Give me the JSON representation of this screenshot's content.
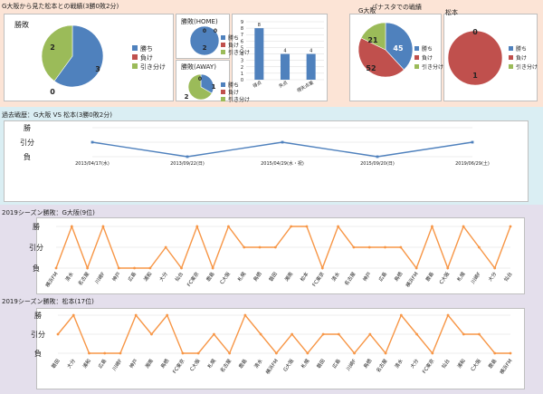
{
  "sections": {
    "gosaka_vs_matsumoto": "G大阪から見た松本との戦績(3勝0敗2分)",
    "panasta": "パナスタでの戦績",
    "history": "過去戦歴：G大阪 VS 松本(3勝0敗2分)",
    "season_gosaka": "2019シーズン勝敗：G大阪(9位)",
    "season_matsumoto": "2019シーズン勝敗：松本(17位)"
  },
  "legend": [
    "勝ち",
    "負け",
    "引き分け"
  ],
  "colors": {
    "win": "#4f81bd",
    "loss": "#c0504d",
    "draw": "#9bbb59",
    "orange": "#f79646",
    "line": "#4f81bd"
  },
  "chart_data": [
    {
      "type": "pie",
      "title": "勝敗",
      "categories": [
        "勝ち",
        "負け",
        "引き分け"
      ],
      "values": [
        3,
        0,
        2
      ],
      "labels": [
        "3",
        "0",
        "2"
      ]
    },
    {
      "type": "pie",
      "title": "勝敗(HOME)",
      "categories": [
        "勝ち",
        "負け",
        "引き分け"
      ],
      "values": [
        2,
        0,
        0
      ],
      "labels": [
        "2",
        "0",
        "0"
      ]
    },
    {
      "type": "pie",
      "title": "勝敗(AWAY)",
      "categories": [
        "勝ち",
        "負け",
        "引き分け"
      ],
      "values": [
        1,
        0,
        2
      ],
      "labels": [
        "1",
        "0",
        "2"
      ]
    },
    {
      "type": "bar",
      "categories": [
        "得点",
        "失点",
        "得失点差"
      ],
      "values": [
        8,
        4,
        4
      ],
      "ylim": [
        0,
        9
      ],
      "yticks": [
        "0",
        "1",
        "2",
        "3",
        "4",
        "5",
        "6",
        "7",
        "8",
        "9"
      ]
    },
    {
      "type": "pie",
      "title": "G大阪",
      "categories": [
        "勝ち",
        "負け",
        "引き分け"
      ],
      "values": [
        45,
        52,
        21
      ],
      "labels": [
        "45",
        "52",
        "21"
      ]
    },
    {
      "type": "pie",
      "title": "松本",
      "categories": [
        "勝ち",
        "負け",
        "引き分け"
      ],
      "values": [
        0,
        1,
        0
      ],
      "labels": [
        "0",
        "1",
        "0"
      ]
    },
    {
      "type": "line",
      "x": [
        "2013/04/17(水)",
        "2013/09/22(日)",
        "2015/04/29(水・祝)",
        "2015/09/20(日)",
        "2019/06/29(土)"
      ],
      "values": [
        1,
        0,
        1,
        0,
        1
      ],
      "ylevels": [
        "負",
        "引分",
        "勝"
      ]
    },
    {
      "type": "line",
      "x": [
        "横浜FM",
        "清水",
        "名古屋",
        "川崎F",
        "神戸",
        "広島",
        "浦和",
        "大分",
        "仙台",
        "FC東京",
        "鹿島",
        "C大阪",
        "札幌",
        "鳥栖",
        "磐田",
        "湘南",
        "松本",
        "FC東京",
        "清水",
        "名古屋",
        "神戸",
        "広島",
        "鳥栖",
        "横浜FM",
        "鹿島",
        "C大阪",
        "札幌",
        "川崎F",
        "大分",
        "仙台"
      ],
      "values": [
        0,
        2,
        0,
        2,
        0,
        0,
        0,
        1,
        0,
        2,
        0,
        2,
        1,
        1,
        1,
        2,
        2,
        0,
        2,
        1,
        1,
        1,
        1,
        0,
        2,
        0,
        2,
        1,
        0,
        2
      ],
      "ylevels": [
        "負",
        "引分",
        "勝"
      ]
    },
    {
      "type": "line",
      "x": [
        "磐田",
        "大分",
        "浦和",
        "広島",
        "川崎F",
        "神戸",
        "湘南",
        "鳥栖",
        "FC東京",
        "C大阪",
        "札幌",
        "名古屋",
        "鹿島",
        "清水",
        "横浜FM",
        "G大阪",
        "札幌",
        "磐田",
        "広島",
        "川崎F",
        "鳥栖",
        "名古屋",
        "清水",
        "大分",
        "FC東京",
        "仙台",
        "浦和",
        "C大阪",
        "鹿島",
        "横浜FM"
      ],
      "values": [
        1,
        2,
        0,
        0,
        0,
        2,
        1,
        2,
        0,
        0,
        1,
        0,
        2,
        1,
        0,
        1,
        0,
        1,
        1,
        0,
        1,
        0,
        2,
        1,
        0,
        2,
        1,
        1,
        0,
        0
      ],
      "ylevels": [
        "負",
        "引分",
        "勝"
      ]
    }
  ]
}
